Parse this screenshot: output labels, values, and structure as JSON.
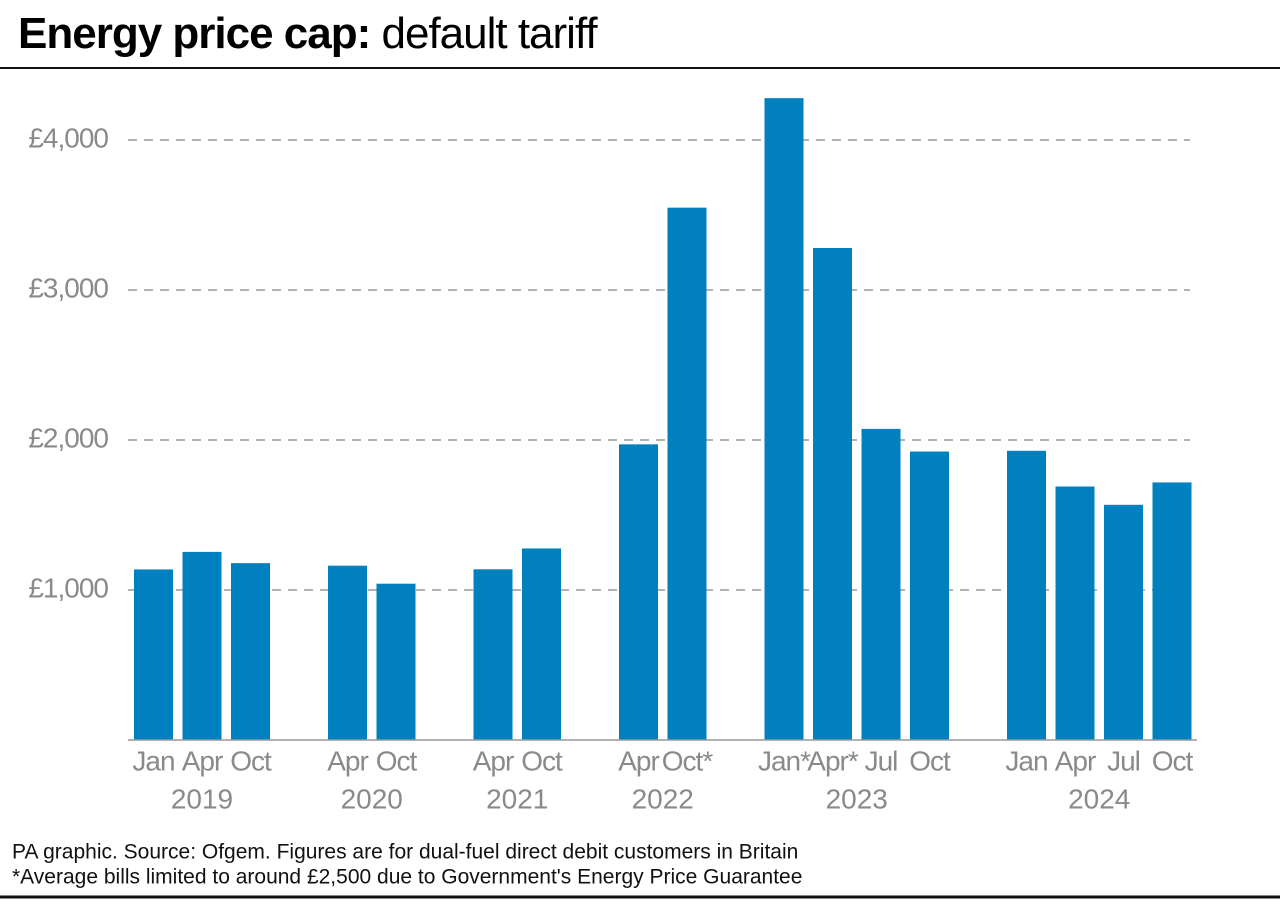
{
  "chart_data": {
    "type": "bar",
    "title": "Energy price cap:",
    "subtitle": "default tariff",
    "color": "#0080bf",
    "groups": [
      {
        "name": "2019",
        "categories": [
          "Jan",
          "Apr",
          "Oct"
        ],
        "values": [
          1137,
          1254,
          1179
        ]
      },
      {
        "name": "2020",
        "categories": [
          "Apr",
          "Oct"
        ],
        "values": [
          1162,
          1042
        ]
      },
      {
        "name": "2021",
        "categories": [
          "Apr",
          "Oct"
        ],
        "values": [
          1138,
          1277
        ]
      },
      {
        "name": "2022",
        "categories": [
          "Apr",
          "Oct*"
        ],
        "values": [
          1971,
          3549
        ]
      },
      {
        "name": "2023",
        "categories": [
          "Jan*",
          "Apr*",
          "Jul",
          "Oct"
        ],
        "values": [
          4279,
          3280,
          2074,
          1923
        ]
      },
      {
        "name": "2024",
        "categories": [
          "Jan",
          "Apr",
          "Jul",
          "Oct"
        ],
        "values": [
          1928,
          1690,
          1568,
          1717
        ]
      }
    ],
    "ylim": [
      0,
      4400
    ],
    "yticks": [
      {
        "value": 1000,
        "label": "£1,000"
      },
      {
        "value": 2000,
        "label": "£2,000"
      },
      {
        "value": 3000,
        "label": "£3,000"
      },
      {
        "value": 4000,
        "label": "£4,000"
      }
    ],
    "grid": true,
    "notes": [
      "PA graphic. Source: Ofgem. Figures are for dual-fuel direct debit customers in Britain",
      "*Average bills limited to around £2,500 due to Government's Energy Price Guarantee"
    ]
  }
}
